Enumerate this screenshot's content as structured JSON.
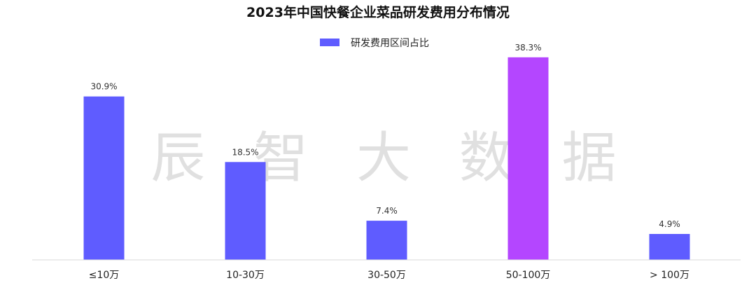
{
  "chart_data": {
    "type": "bar",
    "title": "2023年中国快餐企业菜品研发费用分布情况",
    "categories": [
      "≤10万",
      "10-30万",
      "30-50万",
      "50-100万",
      "> 100万"
    ],
    "series": [
      {
        "name": "研发费用区间占比",
        "values": [
          30.9,
          18.5,
          7.4,
          38.3,
          4.9
        ],
        "value_labels": [
          "30.9%",
          "18.5%",
          "7.4%",
          "38.3%",
          "4.9%"
        ],
        "color": "#5f5cff"
      }
    ],
    "highlight": {
      "index": 3,
      "color": "#b446ff"
    },
    "ylim": [
      0,
      40
    ],
    "xlabel": "",
    "ylabel": "",
    "grid": false,
    "legend_position": "top-center",
    "watermark": "辰 智 大 数 据",
    "axis_color": "#d9d9d9"
  }
}
